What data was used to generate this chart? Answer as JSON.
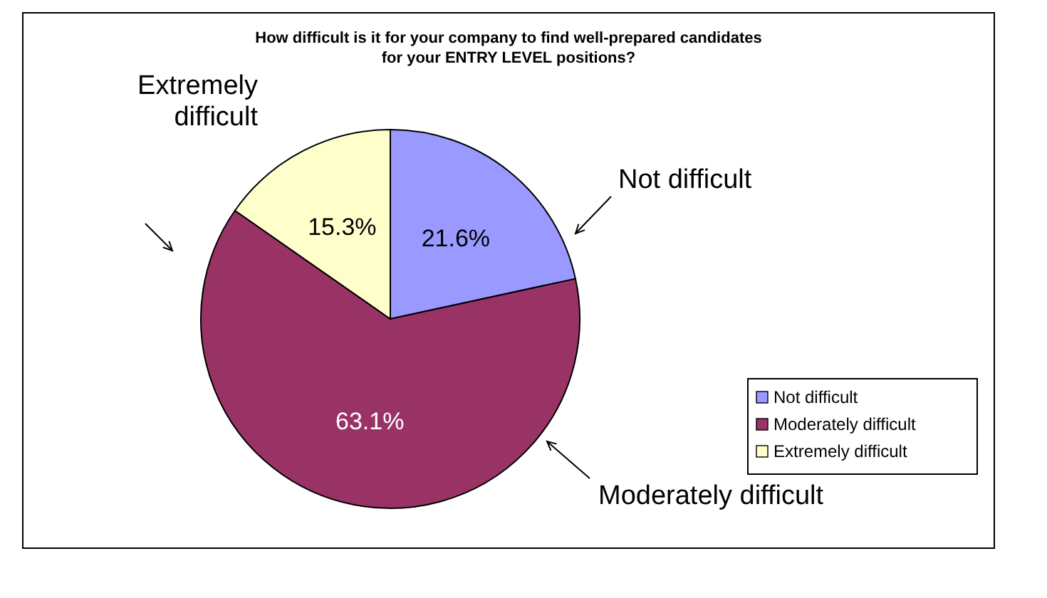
{
  "chart_data": {
    "type": "pie",
    "title": "How difficult is it for your company to find well-prepared candidates for your ENTRY LEVEL positions?",
    "categories": [
      "Not difficult",
      "Moderately difficult",
      "Extremely difficult"
    ],
    "values": [
      21.6,
      63.1,
      15.3
    ],
    "colors": [
      "#9999ff",
      "#993366",
      "#ffffcc"
    ],
    "value_labels": [
      "21.6%",
      "63.1%",
      "15.3%"
    ],
    "legend": "right"
  }
}
